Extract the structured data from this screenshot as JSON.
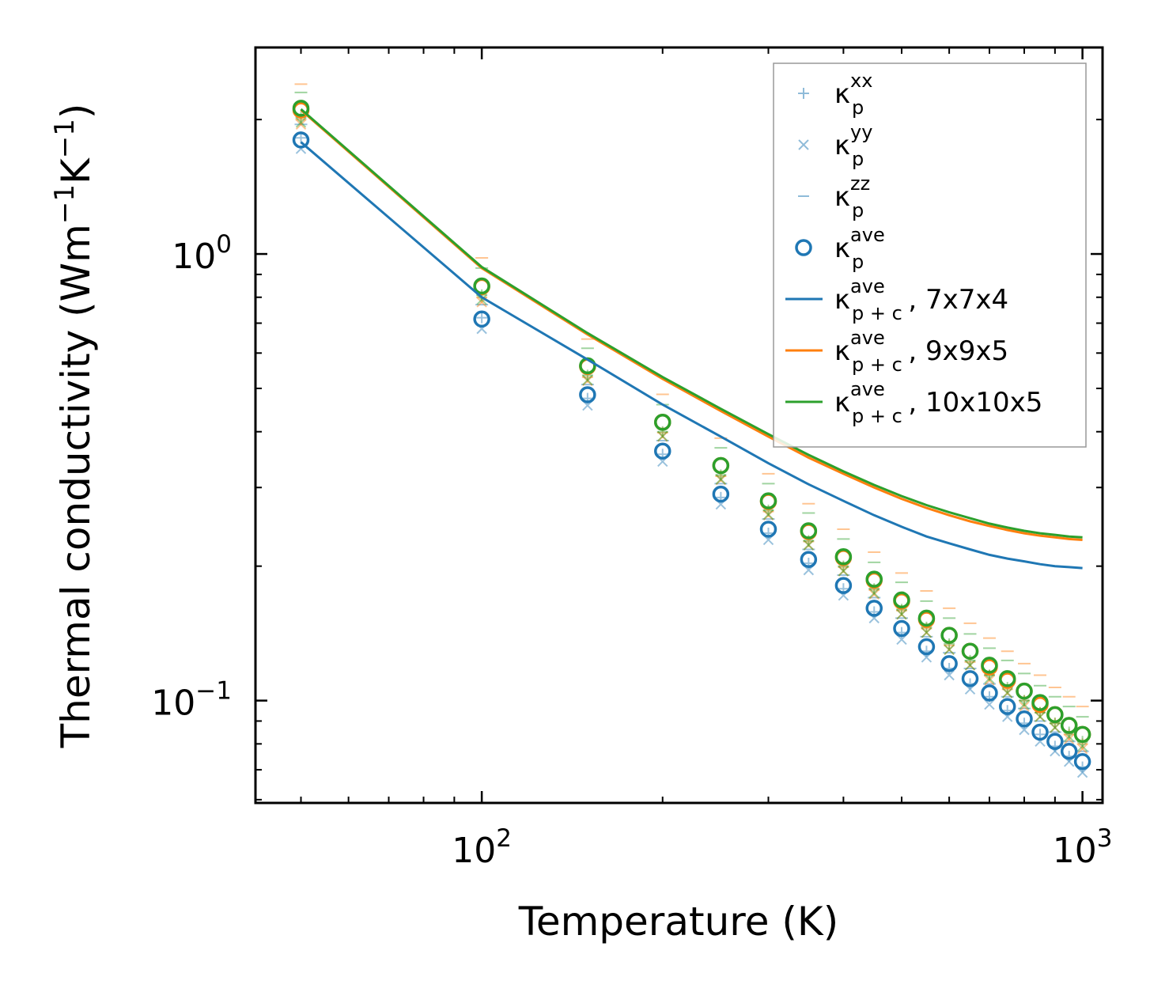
{
  "chart_data": {
    "type": "line",
    "xscale": "log",
    "yscale": "log",
    "xlabel": "Temperature (K)",
    "ylabel_parts": [
      "Thermal conductivity (Wm",
      "−1",
      "K",
      "−1",
      ")"
    ],
    "xlim": [
      42,
      1080
    ],
    "ylim": [
      0.059,
      2.9
    ],
    "x_major_ticks": [
      {
        "value": 100,
        "base": "10",
        "exp": "2"
      },
      {
        "value": 1000,
        "base": "10",
        "exp": "3"
      }
    ],
    "y_major_ticks": [
      {
        "value": 1.0,
        "base": "10",
        "exp": "0"
      },
      {
        "value": 0.1,
        "base": "10",
        "exp": "−1"
      }
    ],
    "temperatures": [
      50,
      100,
      150,
      200,
      250,
      300,
      350,
      400,
      450,
      500,
      550,
      600,
      650,
      700,
      750,
      800,
      850,
      900,
      950,
      1000
    ],
    "marker_series": [
      {
        "name": "7x7x4",
        "color": "#1f77b4",
        "kxx": [
          1.82,
          0.72,
          0.475,
          0.356,
          0.285,
          0.237,
          0.203,
          0.178,
          0.158,
          0.142,
          0.129,
          0.118,
          0.109,
          0.102,
          0.095,
          0.089,
          0.084,
          0.079,
          0.075,
          0.071
        ],
        "kyy": [
          1.72,
          0.68,
          0.458,
          0.343,
          0.275,
          0.229,
          0.196,
          0.172,
          0.153,
          0.137,
          0.125,
          0.114,
          0.106,
          0.098,
          0.092,
          0.086,
          0.081,
          0.077,
          0.073,
          0.069
        ],
        "kzz": [
          1.95,
          0.77,
          0.51,
          0.382,
          0.306,
          0.255,
          0.218,
          0.191,
          0.17,
          0.153,
          0.139,
          0.128,
          0.118,
          0.109,
          0.102,
          0.096,
          0.09,
          0.085,
          0.081,
          0.077
        ],
        "kave": [
          1.8,
          0.715,
          0.484,
          0.362,
          0.29,
          0.242,
          0.207,
          0.181,
          0.161,
          0.145,
          0.132,
          0.121,
          0.112,
          0.104,
          0.097,
          0.091,
          0.085,
          0.081,
          0.077,
          0.073
        ]
      },
      {
        "name": "9x9x5",
        "color": "#ff7f0e",
        "kxx": [
          2.0,
          0.8,
          0.53,
          0.398,
          0.318,
          0.265,
          0.227,
          0.199,
          0.177,
          0.159,
          0.145,
          0.133,
          0.122,
          0.114,
          0.106,
          0.1,
          0.094,
          0.089,
          0.084,
          0.08
        ],
        "kyy": [
          1.95,
          0.78,
          0.52,
          0.39,
          0.312,
          0.26,
          0.223,
          0.195,
          0.173,
          0.156,
          0.142,
          0.13,
          0.12,
          0.111,
          0.104,
          0.097,
          0.092,
          0.087,
          0.082,
          0.078
        ],
        "kzz": [
          2.4,
          0.98,
          0.645,
          0.485,
          0.387,
          0.322,
          0.276,
          0.242,
          0.215,
          0.193,
          0.176,
          0.161,
          0.149,
          0.138,
          0.129,
          0.121,
          0.114,
          0.107,
          0.102,
          0.097
        ],
        "kave": [
          2.1,
          0.845,
          0.56,
          0.42,
          0.336,
          0.279,
          0.239,
          0.209,
          0.186,
          0.167,
          0.152,
          0.14,
          0.129,
          0.119,
          0.111,
          0.105,
          0.098,
          0.093,
          0.088,
          0.084
        ]
      },
      {
        "name": "10x10x5",
        "color": "#2ca02c",
        "kxx": [
          2.02,
          0.81,
          0.535,
          0.4,
          0.32,
          0.267,
          0.228,
          0.2,
          0.178,
          0.16,
          0.146,
          0.134,
          0.123,
          0.114,
          0.107,
          0.1,
          0.094,
          0.089,
          0.085,
          0.081
        ],
        "kyy": [
          1.97,
          0.79,
          0.522,
          0.391,
          0.313,
          0.261,
          0.223,
          0.195,
          0.174,
          0.156,
          0.142,
          0.13,
          0.12,
          0.112,
          0.104,
          0.098,
          0.092,
          0.087,
          0.083,
          0.079
        ],
        "kzz": [
          2.3,
          0.93,
          0.615,
          0.46,
          0.368,
          0.306,
          0.263,
          0.23,
          0.204,
          0.184,
          0.167,
          0.153,
          0.141,
          0.131,
          0.123,
          0.115,
          0.108,
          0.102,
          0.097,
          0.092
        ],
        "kave": [
          2.12,
          0.848,
          0.562,
          0.42,
          0.336,
          0.28,
          0.24,
          0.21,
          0.187,
          0.168,
          0.153,
          0.14,
          0.129,
          0.12,
          0.112,
          0.105,
          0.099,
          0.093,
          0.088,
          0.084
        ]
      }
    ],
    "line_series": [
      {
        "name": "7x7x4",
        "color": "#1f77b4",
        "x": [
          50,
          100,
          150,
          200,
          250,
          300,
          350,
          400,
          450,
          500,
          550,
          600,
          650,
          700,
          750,
          800,
          850,
          900,
          950,
          1000
        ],
        "values": [
          1.78,
          0.8,
          0.58,
          0.46,
          0.39,
          0.34,
          0.305,
          0.28,
          0.26,
          0.245,
          0.233,
          0.225,
          0.218,
          0.212,
          0.208,
          0.205,
          0.202,
          0.2,
          0.199,
          0.198
        ]
      },
      {
        "name": "9x9x5",
        "color": "#ff7f0e",
        "x": [
          50,
          100,
          150,
          200,
          250,
          300,
          350,
          400,
          450,
          500,
          550,
          600,
          650,
          700,
          750,
          800,
          850,
          900,
          950,
          1000
        ],
        "values": [
          2.1,
          0.93,
          0.66,
          0.525,
          0.445,
          0.39,
          0.35,
          0.322,
          0.3,
          0.283,
          0.27,
          0.26,
          0.252,
          0.246,
          0.241,
          0.237,
          0.234,
          0.232,
          0.23,
          0.229
        ]
      },
      {
        "name": "10x10x5",
        "color": "#2ca02c",
        "x": [
          50,
          100,
          150,
          200,
          250,
          300,
          350,
          400,
          450,
          500,
          550,
          600,
          650,
          700,
          750,
          800,
          850,
          900,
          950,
          1000
        ],
        "values": [
          2.11,
          0.935,
          0.665,
          0.53,
          0.45,
          0.395,
          0.355,
          0.326,
          0.304,
          0.287,
          0.274,
          0.264,
          0.256,
          0.249,
          0.244,
          0.24,
          0.237,
          0.235,
          0.233,
          0.232
        ]
      }
    ],
    "legend": {
      "position": "top-right",
      "entries": [
        {
          "symbol": "plus",
          "color": "#1f77b4",
          "alpha": 0.5,
          "base": "κ",
          "sub": "p",
          "sup": "xx",
          "suffix": ""
        },
        {
          "symbol": "x",
          "color": "#1f77b4",
          "alpha": 0.5,
          "base": "κ",
          "sub": "p",
          "sup": "yy",
          "suffix": ""
        },
        {
          "symbol": "hline",
          "color": "#1f77b4",
          "alpha": 0.5,
          "base": "κ",
          "sub": "p",
          "sup": "zz",
          "suffix": ""
        },
        {
          "symbol": "circle",
          "color": "#1f77b4",
          "alpha": 1,
          "base": "κ",
          "sub": "p",
          "sup": "ave",
          "suffix": ""
        },
        {
          "symbol": "line",
          "color": "#1f77b4",
          "alpha": 1,
          "base": "κ",
          "sub": "p + c",
          "sup": "ave",
          "suffix": ", 7x7x4"
        },
        {
          "symbol": "line",
          "color": "#ff7f0e",
          "alpha": 1,
          "base": "κ",
          "sub": "p + c",
          "sup": "ave",
          "suffix": ", 9x9x5"
        },
        {
          "symbol": "line",
          "color": "#2ca02c",
          "alpha": 1,
          "base": "κ",
          "sub": "p + c",
          "sup": "ave",
          "suffix": ", 10x10x5"
        }
      ]
    }
  }
}
